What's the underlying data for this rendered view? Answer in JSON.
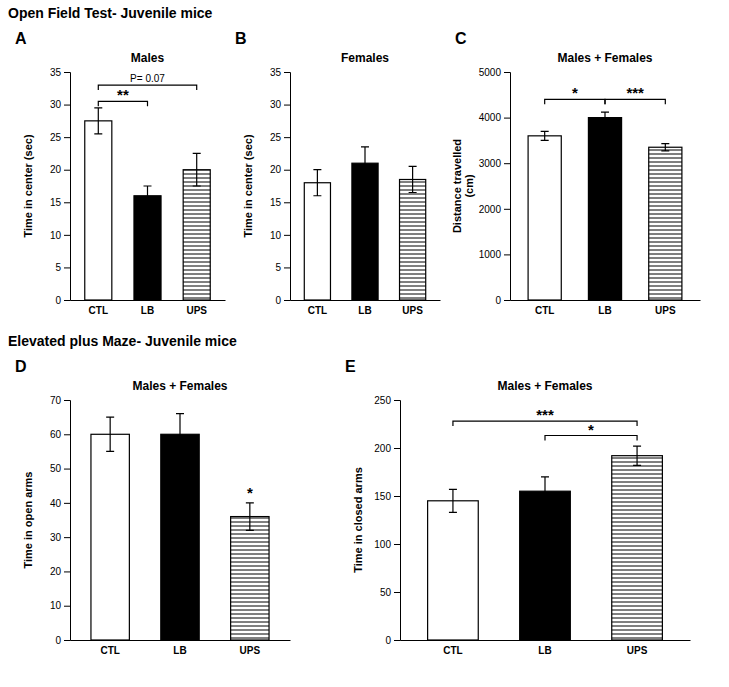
{
  "chart_data": [
    {
      "type": "bar",
      "title": "Open Field Test- Juvenile mice",
      "panel_label": "A",
      "subtitle": "Males",
      "ylabel": "Time in center (sec)",
      "categories": [
        "CTL",
        "LB",
        "UPS"
      ],
      "values": [
        27.5,
        16.0,
        20.0
      ],
      "errors": [
        2.0,
        1.5,
        2.5
      ],
      "colors": [
        "white",
        "black",
        "hatch"
      ],
      "ylim": [
        0,
        35
      ],
      "yticks": [
        0,
        5,
        10,
        15,
        20,
        25,
        30,
        35
      ],
      "grid": false,
      "annotations": [
        {
          "from": "CTL",
          "to": "LB",
          "y": 30.5,
          "text": "**"
        },
        {
          "from": "CTL",
          "to": "UPS",
          "y": 33.0,
          "text": "P= 0.07"
        }
      ]
    },
    {
      "type": "bar",
      "panel_label": "B",
      "subtitle": "Females",
      "ylabel": "Time in center (sec)",
      "categories": [
        "CTL",
        "LB",
        "UPS"
      ],
      "values": [
        18.0,
        21.0,
        18.5
      ],
      "errors": [
        2.0,
        2.5,
        2.0
      ],
      "colors": [
        "white",
        "black",
        "hatch"
      ],
      "ylim": [
        0,
        35
      ],
      "yticks": [
        0,
        5,
        10,
        15,
        20,
        25,
        30,
        35
      ],
      "grid": false,
      "annotations": []
    },
    {
      "type": "bar",
      "panel_label": "C",
      "subtitle": "Males + Females",
      "ylabel": "Distance travelled\n(cm)",
      "categories": [
        "CTL",
        "LB",
        "UPS"
      ],
      "values": [
        3600,
        4000,
        3350
      ],
      "errors": [
        100,
        120,
        80
      ],
      "colors": [
        "white",
        "black",
        "hatch"
      ],
      "ylim": [
        0,
        5000
      ],
      "yticks": [
        0,
        1000,
        2000,
        3000,
        4000,
        5000
      ],
      "grid": false,
      "annotations": [
        {
          "from": "CTL",
          "to": "LB",
          "y": 4400,
          "text": "*"
        },
        {
          "from": "LB",
          "to": "UPS",
          "y": 4400,
          "text": "***"
        }
      ]
    },
    {
      "type": "bar",
      "title": "Elevated plus Maze- Juvenile mice",
      "panel_label": "D",
      "subtitle": "Males + Females",
      "ylabel": "Time in open arms",
      "categories": [
        "CTL",
        "LB",
        "UPS"
      ],
      "values": [
        60.0,
        60.0,
        36.0
      ],
      "errors": [
        5.0,
        6.0,
        4.0
      ],
      "colors": [
        "white",
        "black",
        "hatch"
      ],
      "ylim": [
        0,
        70
      ],
      "yticks": [
        0,
        10,
        20,
        30,
        40,
        50,
        60,
        70
      ],
      "grid": false,
      "annotations": [
        {
          "at": "UPS",
          "y": 41,
          "text": "*"
        }
      ]
    },
    {
      "type": "bar",
      "panel_label": "E",
      "subtitle": "Males + Females",
      "ylabel": "Time in closed arms",
      "categories": [
        "CTL",
        "LB",
        "UPS"
      ],
      "values": [
        145,
        155,
        192
      ],
      "errors": [
        12,
        15,
        10
      ],
      "colors": [
        "white",
        "black",
        "hatch"
      ],
      "ylim": [
        0,
        250
      ],
      "yticks": [
        0,
        50,
        100,
        150,
        200,
        250
      ],
      "grid": false,
      "annotations": [
        {
          "from": "CTL",
          "to": "UPS",
          "y": 228,
          "text": "***"
        },
        {
          "from": "LB",
          "to": "UPS",
          "y": 213,
          "text": "*"
        }
      ]
    }
  ]
}
